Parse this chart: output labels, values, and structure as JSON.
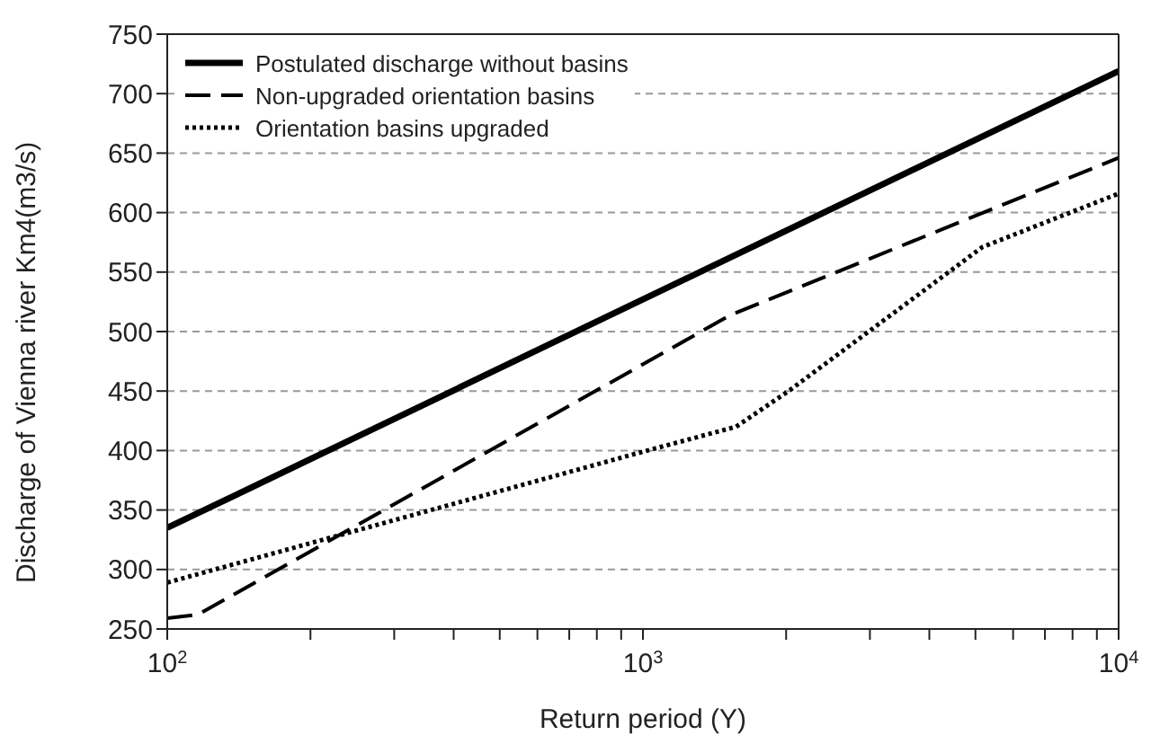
{
  "chart_data": {
    "type": "line",
    "xlabel": "Return period (Y)",
    "ylabel": "Discharge of Vienna river Km4(m3/s)",
    "log": "x",
    "xlim": [
      100,
      10000
    ],
    "ylim": [
      250,
      750
    ],
    "xticks": [
      {
        "value": 100,
        "label": "10$^{2}$"
      },
      {
        "value": 200,
        "label": null
      },
      {
        "value": 300,
        "label": null
      },
      {
        "value": 400,
        "label": null
      },
      {
        "value": 500,
        "label": null
      },
      {
        "value": 600,
        "label": null
      },
      {
        "value": 700,
        "label": null
      },
      {
        "value": 800,
        "label": null
      },
      {
        "value": 900,
        "label": null
      },
      {
        "value": 1000,
        "label": "10$^{3}$"
      },
      {
        "value": 2000,
        "label": null
      },
      {
        "value": 3000,
        "label": null
      },
      {
        "value": 4000,
        "label": null
      },
      {
        "value": 5000,
        "label": null
      },
      {
        "value": 6000,
        "label": null
      },
      {
        "value": 7000,
        "label": null
      },
      {
        "value": 8000,
        "label": null
      },
      {
        "value": 9000,
        "label": null
      },
      {
        "value": 10000,
        "label": "10$^{4}$"
      }
    ],
    "yticks": [
      250,
      300,
      350,
      400,
      450,
      500,
      550,
      600,
      650,
      700,
      750
    ],
    "grid": "y",
    "legend": "top left",
    "marker": "none",
    "series": [
      {
        "name": "Postulated discharge without basins",
        "color": "#000000",
        "line_style": "solid",
        "x": [
          100,
          10000
        ],
        "values": [
          335,
          719
        ]
      },
      {
        "name": "Non-upgraded orientation basins",
        "color": "#000000",
        "line_style": "dashed",
        "x": [
          100,
          116,
          1530,
          10000
        ],
        "values": [
          259,
          262,
          514,
          646
        ]
      },
      {
        "name": "Orientation basins upgraded",
        "color": "#000000",
        "line_style": "dotted",
        "x": [
          100,
          1000,
          1570,
          2040,
          5170,
          10000
        ],
        "values": [
          289,
          399,
          420,
          451,
          571,
          616
        ]
      }
    ]
  }
}
